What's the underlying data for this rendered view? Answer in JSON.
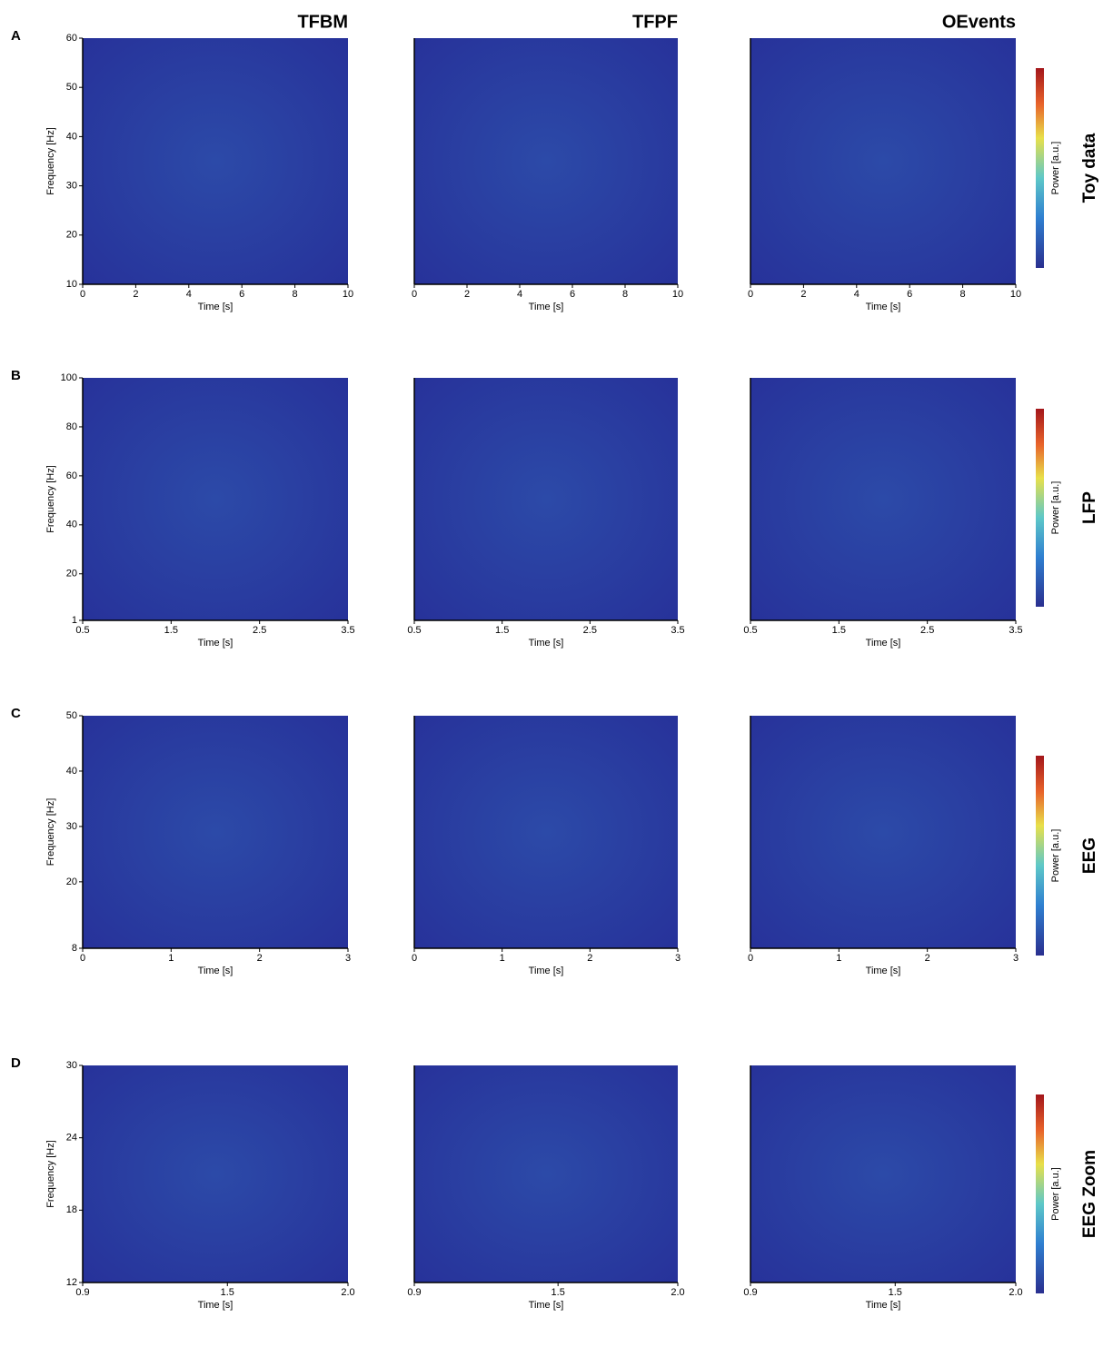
{
  "columns": [
    "TFBM",
    "TFPF",
    "OEvents"
  ],
  "rows": [
    {
      "letter": "A",
      "label": "Toy data",
      "colorbar_label": "Power [a.u.]"
    },
    {
      "letter": "B",
      "label": "LFP",
      "colorbar_label": "Power [a.u.]"
    },
    {
      "letter": "C",
      "label": "EEG",
      "colorbar_label": "Power [a.u.]"
    },
    {
      "letter": "D",
      "label": "EEG Zoom",
      "colorbar_label": "Power [a.u.]"
    }
  ],
  "chart_data": [
    {
      "type": "heatmap",
      "xlabel": "Time [s]",
      "ylabel": "Frequency [Hz]",
      "xlim": [
        0,
        10
      ],
      "xticks": [
        0,
        2,
        4,
        6,
        8,
        10
      ],
      "ylim": [
        10,
        60
      ],
      "yticks": [
        10,
        20,
        30,
        40,
        50,
        60
      ]
    },
    {
      "type": "heatmap",
      "xlabel": "Time [s]",
      "xlim": [
        0,
        10
      ],
      "xticks": [
        0,
        2,
        4,
        6,
        8,
        10
      ]
    },
    {
      "type": "heatmap",
      "xlabel": "Time [s]",
      "xlim": [
        0,
        10
      ],
      "xticks": [
        0,
        2,
        4,
        6,
        8,
        10
      ]
    },
    {
      "type": "heatmap",
      "xlabel": "Time [s]",
      "ylabel": "Frequency [Hz]",
      "xlim": [
        0.5,
        3.5
      ],
      "xticks": [
        0.5,
        1.5,
        2.5,
        3.5
      ],
      "ylim": [
        1,
        100
      ],
      "yticks": [
        1,
        20,
        40,
        60,
        80,
        100
      ]
    },
    {
      "type": "heatmap",
      "xlabel": "Time [s]",
      "xlim": [
        0.5,
        3.5
      ],
      "xticks": [
        0.5,
        1.5,
        2.5,
        3.5
      ]
    },
    {
      "type": "heatmap",
      "xlabel": "Time [s]",
      "xlim": [
        0.5,
        3.5
      ],
      "xticks": [
        0.5,
        1.5,
        2.5,
        3.5
      ]
    },
    {
      "type": "heatmap",
      "xlabel": "Time [s]",
      "ylabel": "Frequency [Hz]",
      "xlim": [
        0,
        3
      ],
      "xticks": [
        0,
        1,
        2,
        3
      ],
      "ylim": [
        8,
        50
      ],
      "yticks": [
        8,
        20,
        30,
        40,
        50
      ]
    },
    {
      "type": "heatmap",
      "xlabel": "Time [s]",
      "xlim": [
        0,
        3
      ],
      "xticks": [
        0,
        1,
        2,
        3
      ]
    },
    {
      "type": "heatmap",
      "xlabel": "Time [s]",
      "xlim": [
        0,
        3
      ],
      "xticks": [
        0,
        1,
        2,
        3
      ]
    },
    {
      "type": "heatmap",
      "xlabel": "Time [s]",
      "ylabel": "Frequency [Hz]",
      "xlim": [
        0.9,
        2
      ],
      "xticks": [
        0.9,
        1.5,
        {
          "value": 2,
          "label": "2.0"
        }
      ],
      "ylim": [
        12,
        30
      ],
      "yticks": [
        12,
        18,
        24,
        30
      ]
    },
    {
      "type": "heatmap",
      "xlabel": "Time [s]",
      "xlim": [
        0.9,
        2
      ],
      "xticks": [
        0.9,
        1.5,
        {
          "value": 2,
          "label": "2.0"
        }
      ]
    },
    {
      "type": "heatmap",
      "xlabel": "Time [s]",
      "xlim": [
        0.9,
        2
      ],
      "xticks": [
        0.9,
        1.5,
        {
          "value": 2,
          "label": "2.0"
        }
      ]
    }
  ]
}
